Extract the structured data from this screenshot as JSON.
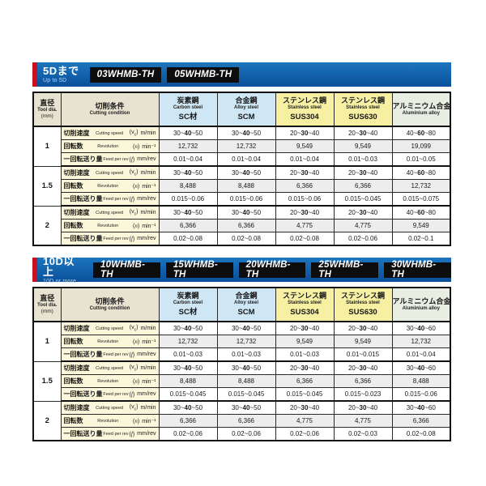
{
  "colors": {
    "banner_blue": "#0a4f99",
    "banner_blue_light": "#1c75be",
    "banner_red": "#c81120",
    "chip_bg": "#0d0d0d",
    "header_tan": "#e7e3d0",
    "header_blue": "#cfe6f4",
    "header_yellow": "#f7f0a3",
    "header_green": "#e9eee3",
    "label_cream": "#fbf7da",
    "row_gray": "#ededed",
    "border_dark": "#111111"
  },
  "sections": [
    {
      "banner": {
        "title_jp": "5Dまで",
        "title_en": "Up to 5D",
        "models": [
          "03WHMB-TH",
          "05WHMB-TH"
        ]
      },
      "table": {
        "columns": [
          {
            "jp": "直径",
            "en": "Tool dia.",
            "code": "(mm)",
            "category": "dia"
          },
          {
            "jp": "切削条件",
            "en": "Cutting condition",
            "code": "",
            "category": "cond"
          },
          {
            "jp": "炭素鋼",
            "en": "Carbon steel",
            "code": "SC材",
            "category": "carbon-steel"
          },
          {
            "jp": "合金鋼",
            "en": "Alloy steel",
            "code": "SCM",
            "category": "alloy-steel"
          },
          {
            "jp": "ステンレス鋼",
            "en": "Stainless steel",
            "code": "SUS304",
            "category": "stainless"
          },
          {
            "jp": "ステンレス鋼",
            "en": "Stainless steel",
            "code": "SUS630",
            "category": "stainless"
          },
          {
            "jp": "アルミニウム合金",
            "en": "Aluminium alloy",
            "code": "",
            "category": "aluminium"
          }
        ],
        "row_labels": [
          {
            "jp": "切削速度",
            "en": "Cutting speed",
            "sym": "(vc)",
            "unit": "m/min"
          },
          {
            "jp": "回転数",
            "en": "Revolution",
            "sym": "(n)",
            "unit": "min⁻¹"
          },
          {
            "jp": "一回転送り量",
            "en": "Feed per rev",
            "sym": "(f)",
            "unit": "mm/rev"
          }
        ],
        "groups": [
          {
            "dia": "1",
            "rows": [
              [
                "30~40~50",
                "30~40~50",
                "20~30~40",
                "20~30~40",
                "40~60~80"
              ],
              [
                "12,732",
                "12,732",
                "9,549",
                "9,549",
                "19,099"
              ],
              [
                "0.01~0.04",
                "0.01~0.04",
                "0.01~0.04",
                "0.01~0.03",
                "0.01~0.05"
              ]
            ]
          },
          {
            "dia": "1.5",
            "rows": [
              [
                "30~40~50",
                "30~40~50",
                "20~30~40",
                "20~30~40",
                "40~60~80"
              ],
              [
                "8,488",
                "8,488",
                "6,366",
                "6,366",
                "12,732"
              ],
              [
                "0.015~0.06",
                "0.015~0.06",
                "0.015~0.06",
                "0.015~0.045",
                "0.015~0.075"
              ]
            ]
          },
          {
            "dia": "2",
            "rows": [
              [
                "30~40~50",
                "30~40~50",
                "20~30~40",
                "20~30~40",
                "40~60~80"
              ],
              [
                "6,366",
                "6,366",
                "4,775",
                "4,775",
                "9,549"
              ],
              [
                "0.02~0.08",
                "0.02~0.08",
                "0.02~0.08",
                "0.02~0.06",
                "0.02~0.1"
              ]
            ]
          }
        ]
      }
    },
    {
      "banner": {
        "title_jp": "10D以上",
        "title_en": "10D or more",
        "models": [
          "10WHMB-TH",
          "15WHMB-TH",
          "20WHMB-TH",
          "25WHMB-TH",
          "30WHMB-TH"
        ]
      },
      "table": {
        "columns": [
          {
            "jp": "直径",
            "en": "Tool dia.",
            "code": "(mm)",
            "category": "dia"
          },
          {
            "jp": "切削条件",
            "en": "Cutting condition",
            "code": "",
            "category": "cond"
          },
          {
            "jp": "炭素鋼",
            "en": "Carbon steel",
            "code": "SC材",
            "category": "carbon-steel"
          },
          {
            "jp": "合金鋼",
            "en": "Alloy steel",
            "code": "SCM",
            "category": "alloy-steel"
          },
          {
            "jp": "ステンレス鋼",
            "en": "Stainless steel",
            "code": "SUS304",
            "category": "stainless"
          },
          {
            "jp": "ステンレス鋼",
            "en": "Stainless steel",
            "code": "SUS630",
            "category": "stainless"
          },
          {
            "jp": "アルミニウム合金",
            "en": "Aluminium alloy",
            "code": "",
            "category": "aluminium"
          }
        ],
        "row_labels": [
          {
            "jp": "切削速度",
            "en": "Cutting speed",
            "sym": "(vc)",
            "unit": "m/min"
          },
          {
            "jp": "回転数",
            "en": "Revolution",
            "sym": "(n)",
            "unit": "min⁻¹"
          },
          {
            "jp": "一回転送り量",
            "en": "Feed per rev",
            "sym": "(f)",
            "unit": "mm/rev"
          }
        ],
        "groups": [
          {
            "dia": "1",
            "rows": [
              [
                "30~40~50",
                "30~40~50",
                "20~30~40",
                "20~30~40",
                "30~40~60"
              ],
              [
                "12,732",
                "12,732",
                "9,549",
                "9,549",
                "12,732"
              ],
              [
                "0.01~0.03",
                "0.01~0.03",
                "0.01~0.03",
                "0.01~0.015",
                "0.01~0.04"
              ]
            ]
          },
          {
            "dia": "1.5",
            "rows": [
              [
                "30~40~50",
                "30~40~50",
                "20~30~40",
                "20~30~40",
                "30~40~60"
              ],
              [
                "8,488",
                "8,488",
                "6,366",
                "6,366",
                "8,488"
              ],
              [
                "0.015~0.045",
                "0.015~0.045",
                "0.015~0.045",
                "0.015~0.023",
                "0.015~0.06"
              ]
            ]
          },
          {
            "dia": "2",
            "rows": [
              [
                "30~40~50",
                "30~40~50",
                "20~30~40",
                "20~30~40",
                "30~40~60"
              ],
              [
                "6,366",
                "6,366",
                "4,775",
                "4,775",
                "6,366"
              ],
              [
                "0.02~0.06",
                "0.02~0.06",
                "0.02~0.06",
                "0.02~0.03",
                "0.02~0.08"
              ]
            ]
          }
        ]
      }
    }
  ]
}
